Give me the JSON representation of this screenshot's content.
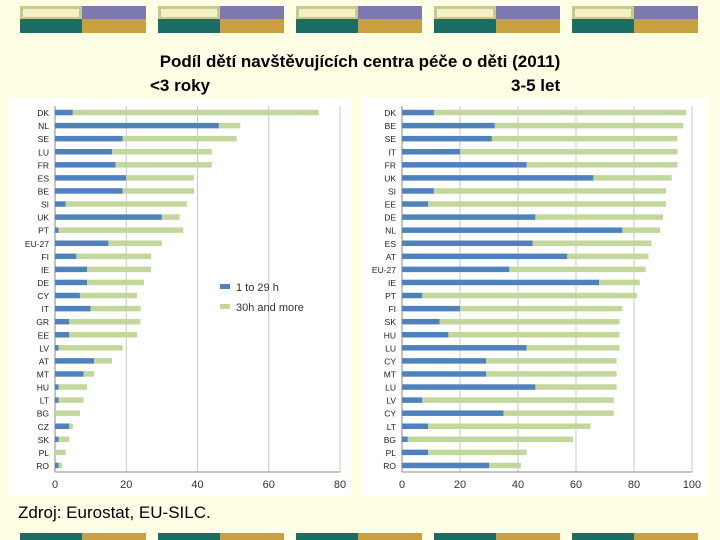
{
  "title": "Podíl dětí navštěvujících centra péče o děti (2011)",
  "subtitle_left": "<3 roky",
  "subtitle_right": "3-5 let",
  "source": "Zdroj: Eurostat, EU-SILC.",
  "colors": {
    "background": "#ffffe6",
    "series1": "#4f81bd",
    "series2": "#c3d69b",
    "deco_olive": "#c9c98f",
    "deco_purple": "#7b79ad",
    "deco_teal": "#1b6e64",
    "deco_gold": "#c8a040"
  },
  "chart_data": [
    {
      "type": "bar",
      "orientation": "horizontal",
      "stacked": true,
      "title": "<3 roky",
      "categories": [
        "DK",
        "NL",
        "SE",
        "LU",
        "FR",
        "ES",
        "BE",
        "SI",
        "UK",
        "PT",
        "EU-27",
        "FI",
        "IE",
        "DE",
        "CY",
        "IT",
        "GR",
        "EE",
        "LV",
        "AT",
        "MT",
        "HU",
        "LT",
        "BG",
        "CZ",
        "SK",
        "PL",
        "RO"
      ],
      "series": [
        {
          "name": "1 to 29 h",
          "values": [
            5,
            46,
            19,
            16,
            17,
            20,
            19,
            3,
            30,
            1,
            15,
            6,
            9,
            9,
            7,
            10,
            4,
            4,
            1,
            11,
            8,
            1,
            1,
            0,
            4,
            1,
            0,
            1
          ]
        },
        {
          "name": "30h and more",
          "values": [
            69,
            6,
            32,
            28,
            27,
            19,
            20,
            34,
            5,
            35,
            15,
            21,
            18,
            16,
            16,
            14,
            20,
            19,
            18,
            5,
            3,
            8,
            7,
            7,
            1,
            3,
            3,
            1
          ]
        }
      ],
      "xlim": [
        0,
        80
      ],
      "xticks": [
        0,
        20,
        40,
        60,
        80
      ],
      "legend": [
        "1 to 29 h",
        "30h and more"
      ]
    },
    {
      "type": "bar",
      "orientation": "horizontal",
      "stacked": true,
      "title": "3-5 let",
      "categories": [
        "DK",
        "BE",
        "SE",
        "IT",
        "FR",
        "UK",
        "SI",
        "EE",
        "DE",
        "NL",
        "ES",
        "AT",
        "EU-27",
        "IE",
        "PT",
        "FI",
        "SK",
        "HU",
        "LU",
        "CY",
        "MT",
        "LU",
        "LV",
        "CY",
        "LT",
        "BG",
        "PL",
        "RO"
      ],
      "series": [
        {
          "name": "1 to 29 h",
          "values": [
            11,
            32,
            31,
            20,
            43,
            66,
            11,
            9,
            46,
            76,
            45,
            57,
            37,
            68,
            7,
            20,
            13,
            16,
            43,
            29,
            29,
            46,
            7,
            35,
            9,
            2,
            9,
            30
          ]
        },
        {
          "name": "30h and more",
          "values": [
            87,
            65,
            64,
            75,
            52,
            27,
            80,
            82,
            44,
            13,
            41,
            28,
            47,
            14,
            74,
            56,
            62,
            59,
            32,
            45,
            45,
            28,
            66,
            38,
            56,
            57,
            34,
            11
          ]
        }
      ],
      "xlim": [
        0,
        100
      ],
      "xticks": [
        0,
        20,
        40,
        60,
        80,
        100
      ]
    }
  ]
}
